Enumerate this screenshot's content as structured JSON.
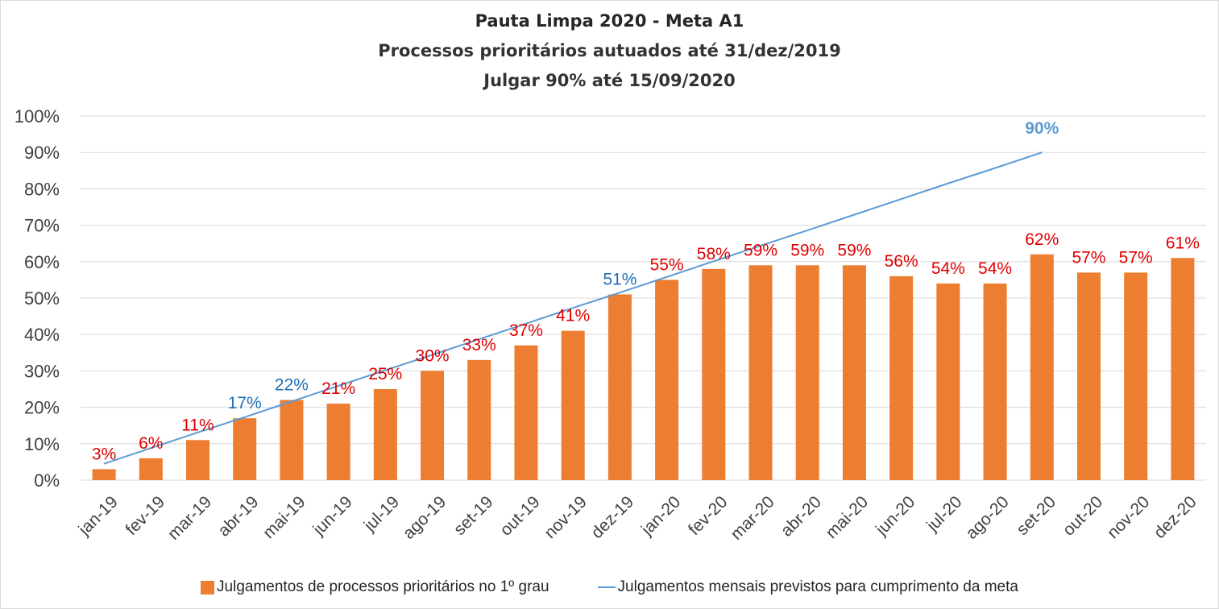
{
  "chart_data": {
    "type": "bar",
    "title": "Pauta Limpa 2020 - Meta A1",
    "subtitle_lines": [
      "Processos prioritários autuados até 31/dez/2019",
      "Julgar 90% até 15/09/2020"
    ],
    "xlabel": "",
    "ylabel": "",
    "ylim": [
      0,
      100
    ],
    "yticks": [
      "0%",
      "10%",
      "20%",
      "30%",
      "40%",
      "50%",
      "60%",
      "70%",
      "80%",
      "90%",
      "100%"
    ],
    "grid": true,
    "legend_position": "bottom",
    "categories": [
      "jan-19",
      "fev-19",
      "mar-19",
      "abr-19",
      "mai-19",
      "jun-19",
      "jul-19",
      "ago-19",
      "set-19",
      "out-19",
      "nov-19",
      "dez-19",
      "jan-20",
      "fev-20",
      "mar-20",
      "abr-20",
      "mai-20",
      "jun-20",
      "jul-20",
      "ago-20",
      "set-20",
      "out-20",
      "nov-20",
      "dez-20"
    ],
    "series": [
      {
        "name": "Julgamentos de processos prioritários no 1º grau",
        "type": "bar",
        "color": "#ed7d31",
        "values": [
          3,
          6,
          11,
          17,
          22,
          21,
          25,
          30,
          33,
          37,
          41,
          51,
          55,
          58,
          59,
          59,
          59,
          56,
          54,
          54,
          62,
          57,
          57,
          61
        ],
        "labels": [
          "3%",
          "6%",
          "11%",
          "17%",
          "22%",
          "21%",
          "25%",
          "30%",
          "33%",
          "37%",
          "41%",
          "51%",
          "55%",
          "58%",
          "59%",
          "59%",
          "59%",
          "56%",
          "54%",
          "54%",
          "62%",
          "57%",
          "57%",
          "61%"
        ],
        "label_colors": [
          "#e00000",
          "#e00000",
          "#e00000",
          "#1f6fb5",
          "#1f6fb5",
          "#e00000",
          "#e00000",
          "#e00000",
          "#e00000",
          "#e00000",
          "#e00000",
          "#1f6fb5",
          "#e00000",
          "#e00000",
          "#e00000",
          "#e00000",
          "#e00000",
          "#e00000",
          "#e00000",
          "#e00000",
          "#e00000",
          "#e00000",
          "#e00000",
          "#e00000"
        ]
      },
      {
        "name": "Julgamentos mensais previstos para cumprimento da meta",
        "type": "line",
        "color": "#5b9bd5",
        "values": [
          4.5,
          8.8,
          13.1,
          17.3,
          21.6,
          25.9,
          30.2,
          34.4,
          38.7,
          43.0,
          47.3,
          51.5,
          55.8,
          60.1,
          64.4,
          68.6,
          72.9,
          77.2,
          81.5,
          85.7,
          90.0
        ],
        "end_label": "90%"
      }
    ]
  },
  "legend": {
    "bar_label": "Julgamentos de processos prioritários no 1º grau",
    "line_label": "Julgamentos mensais previstos para cumprimento da meta"
  }
}
